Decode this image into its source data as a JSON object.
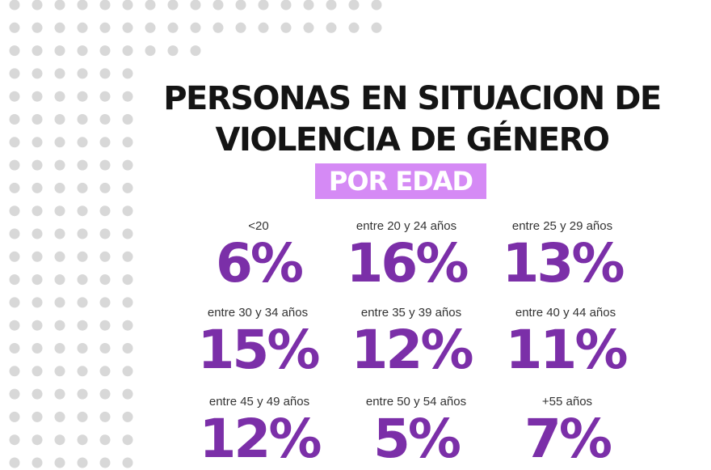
{
  "title": {
    "line1": "PERSONAS EN SITUACION DE",
    "line2": "VIOLENCIA DE GÉNERO"
  },
  "subtitle": "POR EDAD",
  "colors": {
    "title": "#141414",
    "badge_background": "#d58af5",
    "badge_text": "#ffffff",
    "value": "#7b2fa8",
    "dots": "#d8d8d8"
  },
  "chart_data": {
    "type": "table",
    "title": "PERSONAS EN SITUACION DE VIOLENCIA DE GÉNERO",
    "subtitle": "POR EDAD",
    "unit": "%",
    "categories": [
      "<20",
      "entre 20 y 24 años",
      "entre 25 y 29 años",
      "entre 30 y 34 años",
      "entre 35 y 39 años",
      "entre 40 y 44 años",
      "entre 45 y 49 años",
      "entre 50 y 54 años",
      "+55 años"
    ],
    "values": [
      6,
      16,
      13,
      15,
      12,
      11,
      12,
      5,
      7
    ],
    "display": [
      "6%",
      "16%",
      "13%",
      "15%",
      "12%",
      "11%",
      "12%",
      "5%",
      "7%"
    ]
  }
}
